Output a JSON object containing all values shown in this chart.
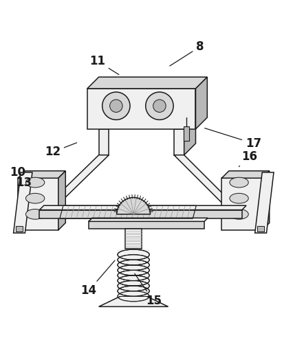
{
  "background_color": "#ffffff",
  "line_color": "#1a1a1a",
  "fill_light": "#f0f0f0",
  "fill_mid": "#d8d8d8",
  "fill_dark": "#b8b8b8",
  "figsize": [
    4.26,
    5.27
  ],
  "dpi": 100,
  "labels_data": {
    "8": [
      0.685,
      0.965,
      0.575,
      0.895
    ],
    "11": [
      0.33,
      0.915,
      0.41,
      0.865
    ],
    "17": [
      0.87,
      0.63,
      0.695,
      0.685
    ],
    "16": [
      0.855,
      0.585,
      0.815,
      0.545
    ],
    "12": [
      0.175,
      0.6,
      0.265,
      0.635
    ],
    "10": [
      0.055,
      0.53,
      0.095,
      0.505
    ],
    "13": [
      0.075,
      0.495,
      0.055,
      0.465
    ],
    "14": [
      0.3,
      0.12,
      0.395,
      0.23
    ],
    "15": [
      0.525,
      0.085,
      0.455,
      0.185
    ]
  }
}
